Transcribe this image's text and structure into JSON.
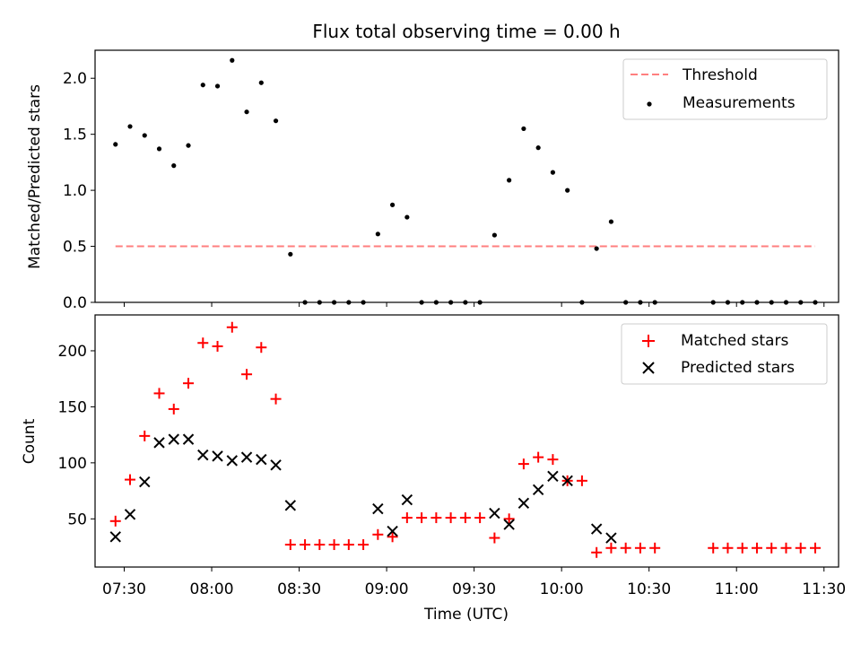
{
  "figure_title": "Flux total observing time = 0.00 h",
  "chart_data": [
    {
      "type": "scatter",
      "ylabel": "Matched/Predicted stars",
      "xlabel": "",
      "ylim": [
        0,
        2.25
      ],
      "yticks": [
        0.0,
        0.5,
        1.0,
        1.5,
        2.0
      ],
      "ytick_labels": [
        "0.0",
        "0.5",
        "1.0",
        "1.5",
        "2.0"
      ],
      "legend_position": "upper right",
      "series": [
        {
          "name": "Threshold",
          "style": "dashed-line",
          "color": "#ff7f7f",
          "x": [
            "07:27",
            "11:27"
          ],
          "values": [
            0.5,
            0.5
          ]
        },
        {
          "name": "Measurements",
          "style": "dot",
          "color": "#000000",
          "x": [
            "07:27",
            "07:32",
            "07:37",
            "07:42",
            "07:47",
            "07:52",
            "07:57",
            "08:02",
            "08:07",
            "08:12",
            "08:17",
            "08:22",
            "08:27",
            "08:32",
            "08:37",
            "08:42",
            "08:47",
            "08:52",
            "08:57",
            "09:02",
            "09:07",
            "09:12",
            "09:17",
            "09:22",
            "09:27",
            "09:32",
            "09:37",
            "09:42",
            "09:47",
            "09:52",
            "09:57",
            "10:02",
            "10:07",
            "10:12",
            "10:17",
            "10:22",
            "10:27",
            "10:32",
            "10:52",
            "10:57",
            "11:02",
            "11:07",
            "11:12",
            "11:17",
            "11:22",
            "11:27"
          ],
          "values": [
            1.41,
            1.57,
            1.49,
            1.37,
            1.22,
            1.4,
            1.94,
            1.93,
            2.16,
            1.7,
            1.96,
            1.62,
            0.43,
            0,
            0,
            0,
            0,
            0,
            0.61,
            0.87,
            0.76,
            0,
            0,
            0,
            0,
            0,
            0.6,
            1.09,
            1.55,
            1.38,
            1.16,
            1.0,
            0,
            0.48,
            0.72,
            0,
            0,
            0,
            0,
            0,
            0,
            0,
            0,
            0,
            0,
            0
          ]
        }
      ]
    },
    {
      "type": "scatter",
      "ylabel": "Count",
      "xlabel": "Time (UTC)",
      "ylim": [
        7,
        232
      ],
      "yticks": [
        50,
        100,
        150,
        200
      ],
      "ytick_labels": [
        "50",
        "100",
        "150",
        "200"
      ],
      "xlim": [
        "07:20",
        "11:35"
      ],
      "xticks": [
        "07:30",
        "08:00",
        "08:30",
        "09:00",
        "09:30",
        "10:00",
        "10:30",
        "11:00",
        "11:30"
      ],
      "legend_position": "upper right",
      "series": [
        {
          "name": "Matched stars",
          "style": "plus",
          "color": "#ff0000",
          "x": [
            "07:27",
            "07:32",
            "07:37",
            "07:42",
            "07:47",
            "07:52",
            "07:57",
            "08:02",
            "08:07",
            "08:12",
            "08:17",
            "08:22",
            "08:27",
            "08:32",
            "08:37",
            "08:42",
            "08:47",
            "08:52",
            "08:57",
            "09:02",
            "09:07",
            "09:12",
            "09:17",
            "09:22",
            "09:27",
            "09:32",
            "09:37",
            "09:42",
            "09:47",
            "09:52",
            "09:57",
            "10:02",
            "10:07",
            "10:12",
            "10:17",
            "10:22",
            "10:27",
            "10:32",
            "10:52",
            "10:57",
            "11:02",
            "11:07",
            "11:12",
            "11:17",
            "11:22",
            "11:27"
          ],
          "values": [
            48,
            85,
            124,
            162,
            148,
            171,
            207,
            204,
            221,
            179,
            203,
            157,
            27,
            27,
            27,
            27,
            27,
            27,
            36,
            34,
            51,
            51,
            51,
            51,
            51,
            51,
            33,
            50,
            99,
            105,
            103,
            84,
            84,
            20,
            24,
            24,
            24,
            24,
            24,
            24,
            24,
            24,
            24,
            24,
            24,
            24
          ]
        },
        {
          "name": "Predicted stars",
          "style": "x",
          "color": "#000000",
          "x": [
            "07:27",
            "07:32",
            "07:37",
            "07:42",
            "07:47",
            "07:52",
            "07:57",
            "08:02",
            "08:07",
            "08:12",
            "08:17",
            "08:22",
            "08:27",
            "08:57",
            "09:02",
            "09:07",
            "09:37",
            "09:42",
            "09:47",
            "09:52",
            "09:57",
            "10:02",
            "10:12",
            "10:17"
          ],
          "values": [
            34,
            54,
            83,
            118,
            121,
            121,
            107,
            106,
            102,
            105,
            103,
            98,
            62,
            59,
            39,
            67,
            55,
            45,
            64,
            76,
            88,
            84,
            41,
            33
          ]
        }
      ]
    }
  ]
}
